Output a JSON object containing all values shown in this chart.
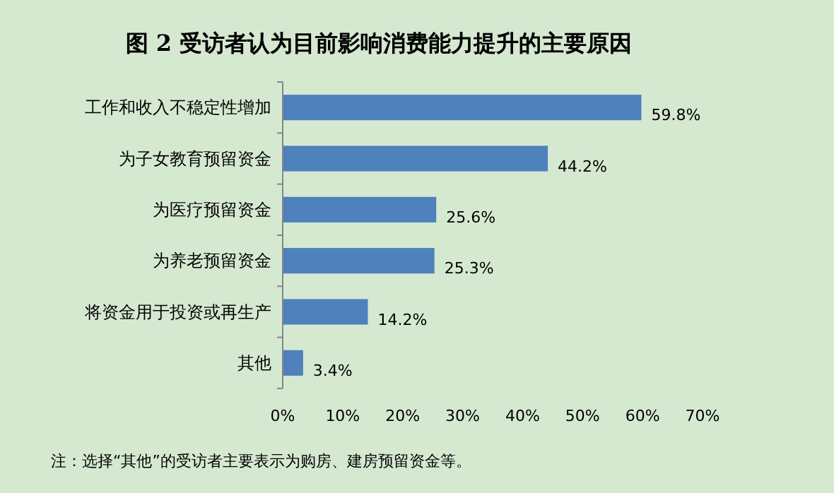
{
  "chart_data": {
    "type": "bar",
    "orientation": "horizontal",
    "title": "图 2  受访者认为目前影响消费能力提升的主要原因",
    "categories": [
      "工作和收入不稳定性增加",
      "为子女教育预留资金",
      "为医疗预留资金",
      "为养老预留资金",
      "将资金用于投资或再生产",
      "其他"
    ],
    "series": [
      {
        "color": "#4f81bd",
        "values": [
          59.8,
          44.2,
          25.6,
          25.3,
          14.2,
          3.4
        ],
        "value_labels": [
          "59.8%",
          "44.2%",
          "25.6%",
          "25.3%",
          "14.2%",
          "3.4%"
        ]
      }
    ],
    "xlim": [
      0,
      70
    ],
    "xticks": [
      {
        "value": 0,
        "label": "0%"
      },
      {
        "value": 10,
        "label": "10%"
      },
      {
        "value": 20,
        "label": "20%"
      },
      {
        "value": 30,
        "label": "30%"
      },
      {
        "value": 40,
        "label": "40%"
      },
      {
        "value": 50,
        "label": "50%"
      },
      {
        "value": 60,
        "label": "60%"
      },
      {
        "value": 70,
        "label": "70%"
      }
    ],
    "grid": false,
    "annotations": [
      "注：选择“其他”的受访者主要表示为购房、建房预留资金等。"
    ]
  }
}
